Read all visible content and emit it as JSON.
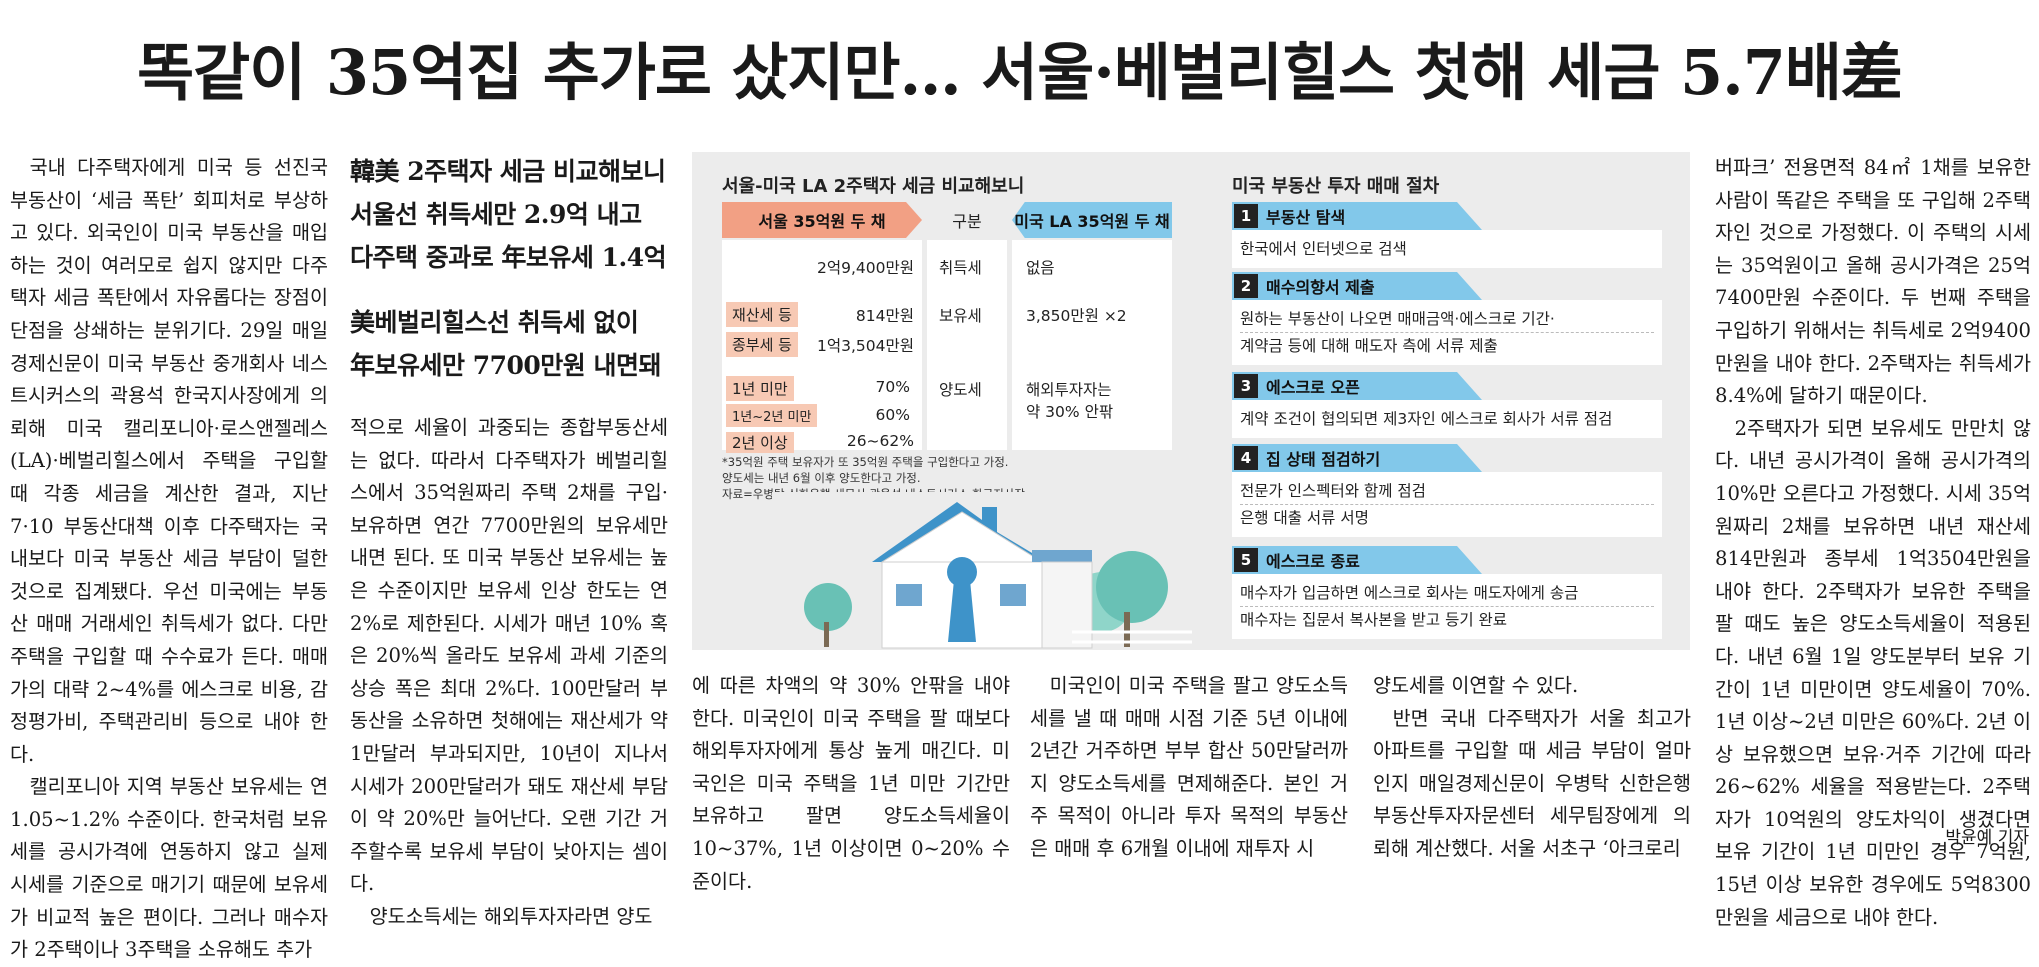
{
  "headline": "똑같이 35억집 추가로 샀지만… 서울·베벌리힐스 첫해 세금 5.7배差",
  "subheads": {
    "line1": "韓美 2주택자 세금 비교해보니",
    "line2": "서울선 취득세만 2.9억 내고",
    "line3": "다주택 중과로 年보유세 1.4억",
    "line4": "美베벌리힐스선 취득세 없이",
    "line5": "年보유세만 7700만원 내면돼"
  },
  "col1": [
    "국내 다주택자에게 미국 등 선진국 부동산이 ‘세금 폭탄’ 회피처로 부상하고 있다. 외국인이 미국 부동산을 매입하는 것이 여러모로 쉽지 않지만 다주택자 세금 폭탄에서 자유롭다는 장점이 단점을 상쇄하는 분위기다. 29일 매일경제신문이 미국 부동산 중개회사 네스트시커스의 곽용석 한국지사장에게 의뢰해 미국 캘리포니아·로스앤젤레스(LA)·베벌리힐스에서 주택을 구입할 때 각종 세금을 계산한 결과, 지난 7·10 부동산대책 이후 다주택자는 국내보다 미국 부동산 세금 부담이 덜한 것으로 집계됐다. 우선 미국에는 부동산 매매 거래세인 취득세가 없다. 다만 주택을 구입할 때 수수료가 든다. 매매가의 대략 2~4%를 에스크로 비용, 감정평가비, 주택관리비 등으로 내야 한다.",
    "캘리포니아 지역 부동산 보유세는 연 1.05~1.2% 수준이다. 한국처럼 보유세를 공시가격에 연동하지 않고 실제 시세를 기준으로 매기기 때문에 보유세가 비교적 높은 편이다. 그러나 매수자가 2주택이나 3주택을 소유해도 추가"
  ],
  "col2": [
    "적으로 세율이 과중되는 종합부동산세는 없다. 따라서 다주택자가 베벌리힐스에서 35억원짜리 주택 2채를 구입·보유하면 연간 7700만원의 보유세만 내면 된다. 또 미국 부동산 보유세는 높은 수준이지만 보유세 인상 한도는 연 2%로 제한된다. 시세가 매년 10% 혹은 20%씩 올라도 보유세 과세 기준의 상승 폭은 최대 2%다. 100만달러 부동산을 소유하면 첫해에는 재산세가 약 1만달러 부과되지만, 10년이 지나서 시세가 200만달러가 돼도 재산세 부담이 약 20%만 늘어난다. 오랜 기간 거주할수록 보유세 부담이 낮아지는 셈이다.",
    "양도소득세는 해외투자자라면 양도"
  ],
  "col3": "에 따른 차액의 약 30% 안팎을 내야 한다. 미국인이 미국 주택을 팔 때보다 해외투자자에게 통상 높게 매긴다. 미국인은 미국 주택을 1년 미만 기간만 보유하고 팔면 양도소득세율이 10~37%, 1년 이상이면 0~20% 수준이다.",
  "col4": "미국인이 미국 주택을 팔고 양도소득세를 낼 때 매매 시점 기준 5년 이내에 2년간 거주하면 부부 합산 50만달러까지 양도소득세를 면제해준다. 본인 거주 목적이 아니라 투자 목적의 부동산은 매매 후 6개월 이내에 재투자 시",
  "col5": [
    "양도세를 이연할 수 있다.",
    "반면 국내 다주택자가 서울 최고가 아파트를 구입할 때 세금 부담이 얼마인지 매일경제신문이 우병탁 신한은행 부동산투자자문센터 세무팀장에게 의뢰해 계산했다. 서울 서초구 ‘아크로리"
  ],
  "col6": [
    "버파크’ 전용면적 84㎡ 1채를 보유한 사람이 똑같은 주택을 또 구입해 2주택자인 것으로 가정했다. 이 주택의 시세는 35억원이고 올해 공시가격은 25억7400만원 수준이다. 두 번째 주택을 구입하기 위해서는 취득세로 2억9400만원을 내야 한다. 2주택자는 취득세가 8.4%에 달하기 때문이다.",
    "2주택자가 되면 보유세도 만만치 않다. 내년 공시가격이 올해 공시가격의 10%만 오른다고 가정했다. 시세 35억원짜리 2채를 보유하면 내년 재산세 814만원과 종부세 1억3504만원을 내야 한다. 2주택자가 보유한 주택을 팔 때도 높은 양도소득세율이 적용된다. 내년 6월 1일 양도분부터 보유 기간이 1년 미만이면 양도세율이 70%. 1년 이상~2년 미만은 60%다. 2년 이상 보유했으면 보유·거주 기간에 따라 26~62% 세율을 적용받는다. 2주택자가 10억원의 양도차익이 생겼다면 보유 기간이 1년 미만인 경우 7억원, 15년 이상 보유한 경우에도 5억8300만원을 세금으로 내야 한다."
  ],
  "byline": "박윤예 기자",
  "graphic": {
    "title_left": "서울-미국 LA 2주택자 세금 비교해보니",
    "header_seoul": "서울 35억원 두 채",
    "header_mid": "구분",
    "header_la": "미국 LA 35억원 두 채",
    "seoul_acq": "2억9,400만원",
    "row_acq": "취득세",
    "la_acq": "없음",
    "tag_property": "재산세 등",
    "seoul_property": "814만원",
    "row_hold": "보유세",
    "la_hold": "3,850만원 ×2",
    "tag_comp": "종부세 등",
    "seoul_comp": "1억3,504만원",
    "tag_1y": "1년 미만",
    "seoul_1y": "70%",
    "tag_12y": "1년~2년 미만",
    "seoul_12y": "60%",
    "tag_2y": "2년 이상",
    "seoul_2y": "26~62%",
    "row_transfer": "양도세",
    "la_transfer1": "해외투자자는",
    "la_transfer2": "약 30% 안팎",
    "note1": "*35억원 주택 보유자가 또 35억원 주택을 구입한다고 가정.",
    "note2": "양도세는 내년 6월 이후 양도한다고 가정.",
    "note3": "자료=우병탁 신한은행 세무사·곽용석 네스트시커스 한국지사장",
    "title_right": "미국 부동산 투자 매매 절차",
    "steps": [
      {
        "num": "1",
        "title": "부동산 탐색",
        "lines": [
          "한국에서 인터넷으로 검색"
        ]
      },
      {
        "num": "2",
        "title": "매수의향서 제출",
        "lines": [
          "원하는 부동산이 나오면 매매금액·에스크로 기간·",
          "계약금 등에 대해 매도자 측에 서류 제출"
        ]
      },
      {
        "num": "3",
        "title": "에스크로 오픈",
        "lines": [
          "계약 조건이 협의되면 제3자인 에스크로 회사가 서류 점검"
        ]
      },
      {
        "num": "4",
        "title": "집 상태 점검하기",
        "lines": [
          "전문가 인스펙터와 함께 점검",
          "은행 대출 서류 서명"
        ]
      },
      {
        "num": "5",
        "title": "에스크로 종료",
        "lines": [
          "매수자가 입금하면 에스크로 회사는 매도자에게 송금",
          "매수자는 집문서 복사본을 받고 등기 완료"
        ]
      }
    ],
    "colors": {
      "seoul": "#f2a084",
      "la": "#82c8ea",
      "bg": "#ececec"
    }
  }
}
